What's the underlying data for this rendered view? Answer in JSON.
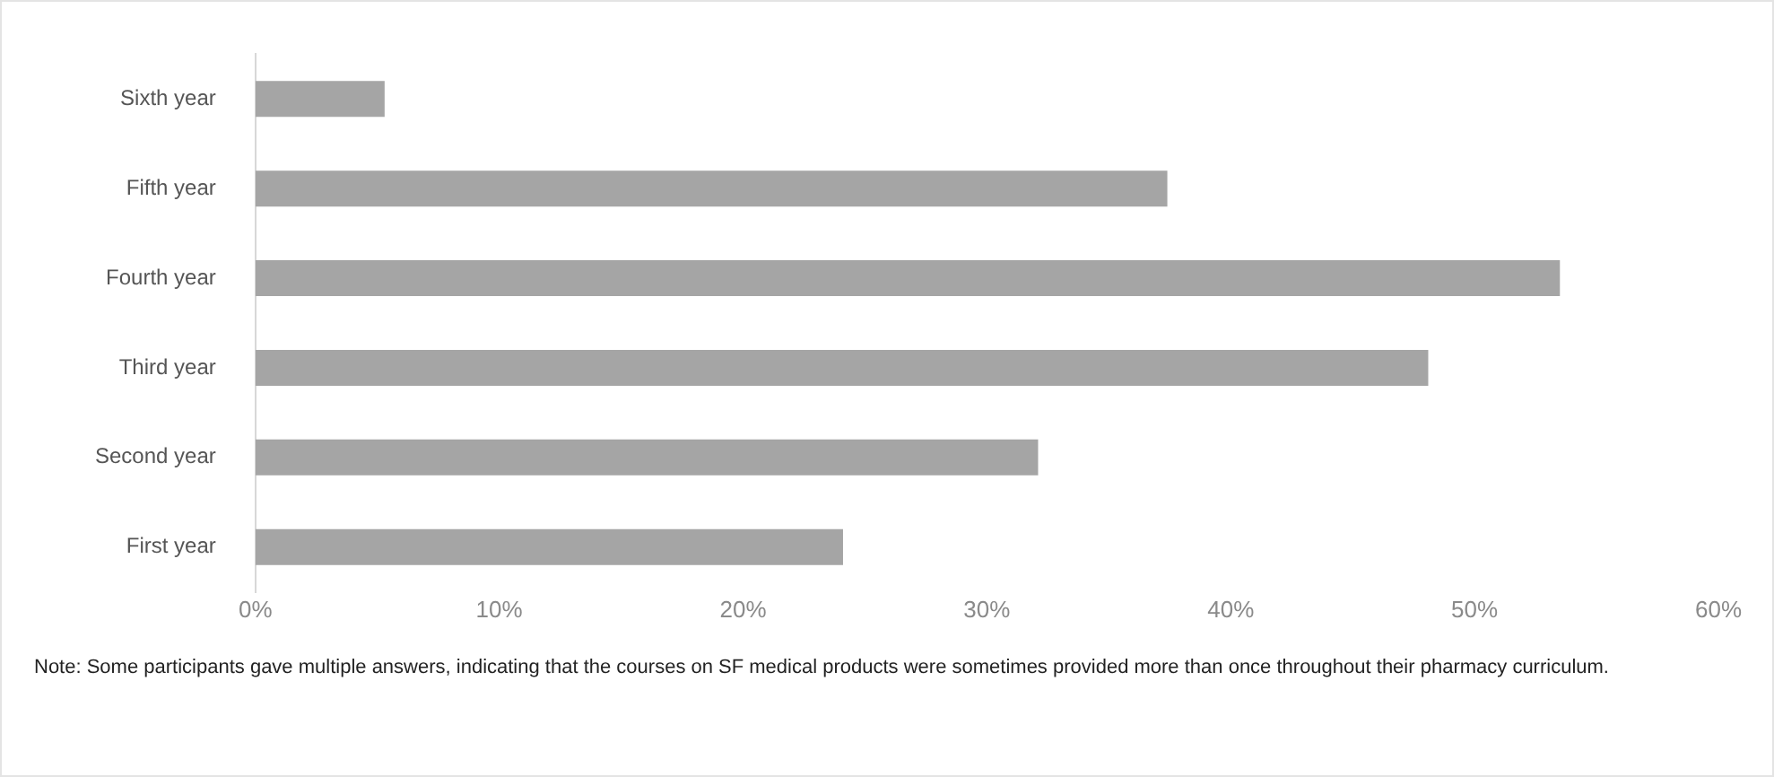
{
  "chart_data": {
    "type": "bar",
    "orientation": "horizontal",
    "categories": [
      "Sixth year",
      "Fifth year",
      "Fourth year",
      "Third year",
      "Second year",
      "First year"
    ],
    "values": [
      5.3,
      37.4,
      53.5,
      48.1,
      32.1,
      24.1
    ],
    "color": "#a5a5a5",
    "xlim": [
      0,
      60
    ],
    "xticks": [
      {
        "value": 0,
        "label": "0%"
      },
      {
        "value": 10,
        "label": "10%"
      },
      {
        "value": 20,
        "label": "20%"
      },
      {
        "value": 30,
        "label": "30%"
      },
      {
        "value": 40,
        "label": "40%"
      },
      {
        "value": 50,
        "label": "50%"
      },
      {
        "value": 60,
        "label": "60%"
      }
    ],
    "grid": false,
    "legend": false,
    "annotations": [
      "Note: Some participants gave multiple answers, indicating that the courses on SF medical products were sometimes provided more than once throughout their pharmacy curriculum."
    ]
  }
}
